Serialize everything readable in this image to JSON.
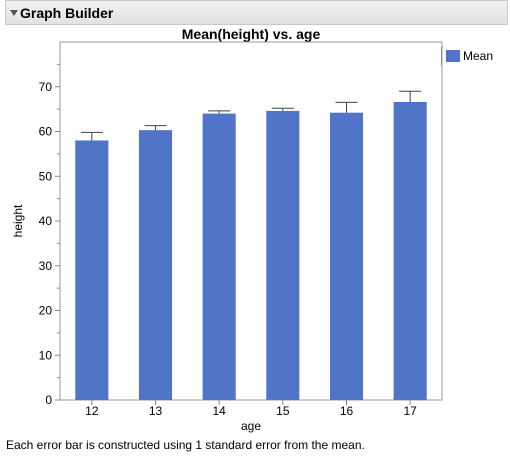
{
  "window": {
    "title": "Graph Builder"
  },
  "colors": {
    "bar": "#5075c8",
    "error_bar": "#404040",
    "axis": "#888888",
    "plot_border": "#9a9a9a"
  },
  "chart_data": {
    "type": "bar",
    "title": "Mean(height) vs. age",
    "xlabel": "age",
    "ylabel": "height",
    "categories": [
      "12",
      "13",
      "14",
      "15",
      "16",
      "17"
    ],
    "series": [
      {
        "name": "Mean",
        "values": [
          58.0,
          60.3,
          64.0,
          64.6,
          64.2,
          66.6
        ],
        "error_low": [
          56.3,
          59.2,
          63.3,
          63.9,
          61.8,
          64.2
        ],
        "error_high": [
          59.8,
          61.3,
          64.6,
          65.2,
          66.5,
          69.0
        ]
      }
    ],
    "ylim": [
      0,
      80
    ],
    "yticks": [
      0,
      10,
      20,
      30,
      40,
      50,
      60,
      70
    ],
    "grid": false,
    "legend_position": "right"
  },
  "footnote": "Each error bar is constructed using 1 standard error from the mean."
}
